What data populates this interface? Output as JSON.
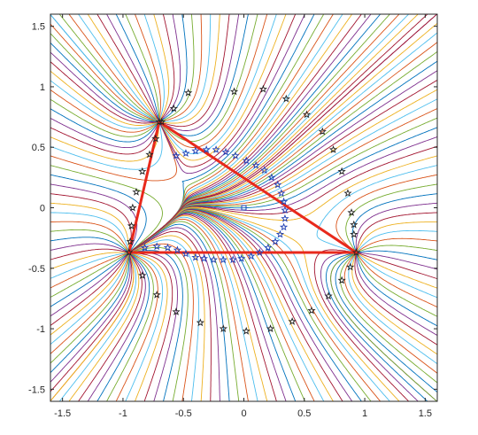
{
  "chart_data": {
    "type": "line",
    "title": "",
    "xlabel": "",
    "ylabel": "",
    "xlim": [
      -1.6,
      1.6
    ],
    "ylim": [
      -1.6,
      1.6
    ],
    "grid": false,
    "x_ticks": [
      -1.5,
      -1,
      -0.5,
      0,
      0.5,
      1,
      1.5
    ],
    "x_tick_labels": [
      "-1.5",
      "-1",
      "-0.5",
      "0",
      "0.5",
      "1",
      "1.5"
    ],
    "y_ticks": [
      1.5,
      1,
      0.5,
      0,
      -0.5,
      -1,
      -1.5
    ],
    "y_tick_labels": [
      "1.5",
      "1",
      "0.5",
      "0",
      "-0.5",
      "-1",
      "-1.5"
    ],
    "vertices": [
      {
        "x": -0.7,
        "y": 0.71
      },
      {
        "x": -0.95,
        "y": -0.37
      },
      {
        "x": 0.93,
        "y": -0.37
      }
    ],
    "triangle_color": "#e8291c",
    "center_marker": {
      "x": 0.0,
      "y": 0.0,
      "marker": "square",
      "color": "#1f3fb4"
    },
    "blue_star_loop": [
      [
        -0.56,
        0.43
      ],
      [
        -0.48,
        0.45
      ],
      [
        -0.4,
        0.47
      ],
      [
        -0.31,
        0.48
      ],
      [
        -0.23,
        0.48
      ],
      [
        -0.15,
        0.46
      ],
      [
        -0.07,
        0.43
      ],
      [
        0.02,
        0.39
      ],
      [
        0.1,
        0.35
      ],
      [
        0.17,
        0.31
      ],
      [
        0.23,
        0.25
      ],
      [
        0.28,
        0.19
      ],
      [
        0.31,
        0.12
      ],
      [
        0.33,
        0.05
      ],
      [
        0.34,
        -0.02
      ],
      [
        0.34,
        -0.09
      ],
      [
        0.33,
        -0.16
      ],
      [
        0.3,
        -0.22
      ],
      [
        0.26,
        -0.28
      ],
      [
        0.2,
        -0.33
      ],
      [
        0.13,
        -0.37
      ],
      [
        0.06,
        -0.4
      ],
      [
        -0.02,
        -0.42
      ],
      [
        -0.09,
        -0.43
      ],
      [
        -0.17,
        -0.43
      ],
      [
        -0.25,
        -0.43
      ],
      [
        -0.33,
        -0.42
      ],
      [
        -0.4,
        -0.41
      ],
      [
        -0.48,
        -0.38
      ],
      [
        -0.55,
        -0.35
      ],
      [
        -0.63,
        -0.33
      ],
      [
        -0.72,
        -0.32
      ],
      [
        -0.82,
        -0.33
      ]
    ],
    "outer_star_path": [
      [
        -0.08,
        0.96
      ],
      [
        0.16,
        0.98
      ],
      [
        0.35,
        0.9
      ],
      [
        0.52,
        0.77
      ],
      [
        0.65,
        0.63
      ],
      [
        0.74,
        0.48
      ],
      [
        0.81,
        0.3
      ],
      [
        0.86,
        0.12
      ],
      [
        0.89,
        -0.04
      ],
      [
        0.91,
        -0.14
      ],
      [
        0.91,
        -0.22
      ],
      [
        -0.46,
        0.95
      ],
      [
        -0.68,
        0.71
      ],
      [
        -0.73,
        0.57
      ],
      [
        -0.78,
        0.44
      ],
      [
        -0.84,
        0.3
      ],
      [
        -0.89,
        0.13
      ],
      [
        -0.92,
        0.0
      ],
      [
        -0.93,
        -0.15
      ],
      [
        -0.94,
        -0.28
      ],
      [
        -0.58,
        0.82
      ],
      [
        -0.84,
        -0.56
      ],
      [
        -0.72,
        -0.72
      ],
      [
        -0.56,
        -0.86
      ],
      [
        -0.36,
        -0.95
      ],
      [
        -0.17,
        -1.0
      ],
      [
        0.02,
        -1.02
      ],
      [
        0.22,
        -1.0
      ],
      [
        0.4,
        -0.94
      ],
      [
        0.56,
        -0.85
      ],
      [
        0.7,
        -0.73
      ],
      [
        0.81,
        -0.6
      ],
      [
        0.88,
        -0.49
      ]
    ]
  }
}
